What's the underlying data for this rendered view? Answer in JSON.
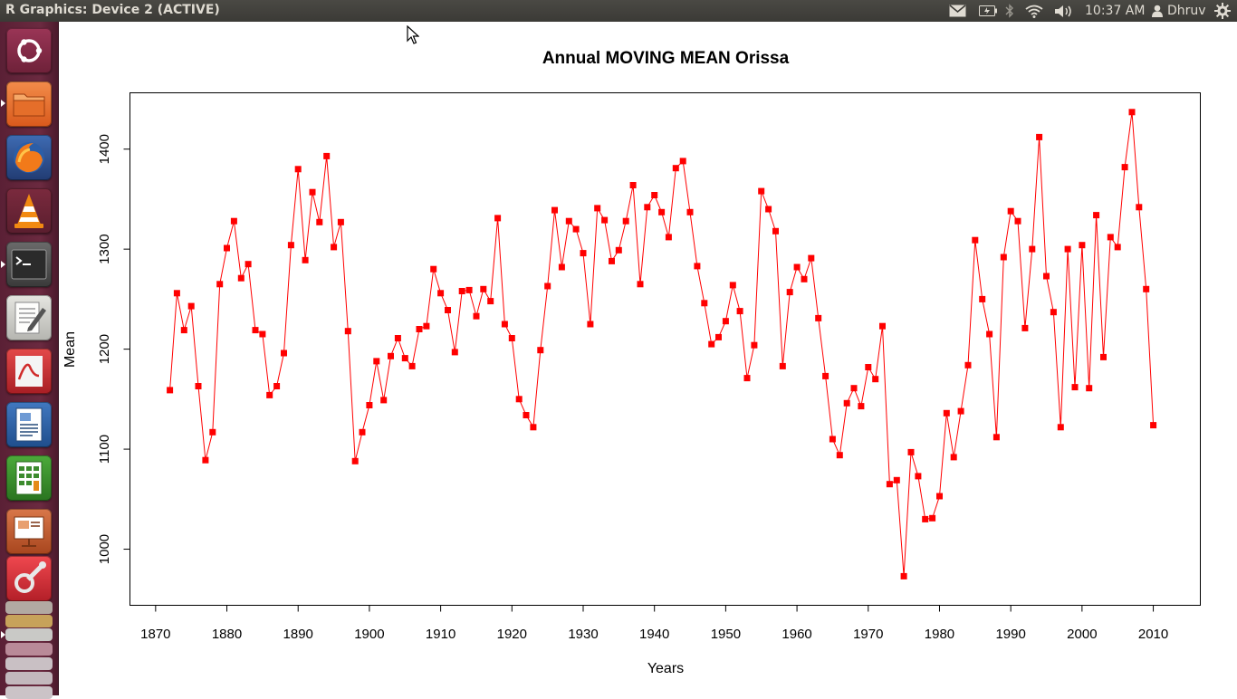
{
  "window": {
    "title": "R Graphics: Device 2 (ACTIVE)"
  },
  "panel": {
    "clock": "10:37 AM",
    "user": "Dhruv"
  },
  "launcher": {
    "items": [
      {
        "name": "dash-icon",
        "color": "#7a2540"
      },
      {
        "name": "files-icon",
        "color": "#e4732c"
      },
      {
        "name": "firefox-icon",
        "color": "#e55a1e"
      },
      {
        "name": "vlc-icon",
        "color": "#f08a1a"
      },
      {
        "name": "terminal-icon",
        "color": "#2c2c2c"
      },
      {
        "name": "text-editor-icon",
        "color": "#c9c9c4"
      },
      {
        "name": "document-viewer-icon",
        "color": "#c8323a"
      },
      {
        "name": "writer-icon",
        "color": "#2c5d9e"
      },
      {
        "name": "calc-icon",
        "color": "#3c8b2e"
      },
      {
        "name": "impress-icon",
        "color": "#b8502a"
      },
      {
        "name": "settings-icon",
        "color": "#d9363e"
      }
    ]
  },
  "chart_data": {
    "type": "line",
    "title": "Annual MOVING MEAN Orissa",
    "xlabel": "Years",
    "ylabel": "Mean",
    "x_ticks": [
      1870,
      1880,
      1890,
      1900,
      1910,
      1920,
      1930,
      1940,
      1950,
      1960,
      1970,
      1980,
      1990,
      2000,
      2010
    ],
    "y_ticks": [
      1000,
      1100,
      1200,
      1300,
      1400
    ],
    "xlim": [
      1866.4,
      2016.6
    ],
    "ylim": [
      943.9,
      1456.3
    ],
    "color": "#ff0000",
    "marker": "square",
    "grid": false,
    "legend": "none",
    "series": [
      {
        "x": [
          1872,
          1873,
          1874,
          1875,
          1876,
          1877,
          1878,
          1879,
          1880,
          1881,
          1882,
          1883,
          1884,
          1885,
          1886,
          1887,
          1888,
          1889,
          1890,
          1891,
          1892,
          1893,
          1894,
          1895,
          1896,
          1897,
          1898,
          1899,
          1900,
          1901,
          1902,
          1903,
          1904,
          1905,
          1906,
          1907,
          1908,
          1909,
          1910,
          1911,
          1912,
          1913,
          1914,
          1915,
          1916,
          1917,
          1918,
          1919,
          1920,
          1921,
          1922,
          1923,
          1924,
          1925,
          1926,
          1927,
          1928,
          1929,
          1930,
          1931,
          1932,
          1933,
          1934,
          1935,
          1936,
          1937,
          1938,
          1939,
          1940,
          1941,
          1942,
          1943,
          1944,
          1945,
          1946,
          1947,
          1948,
          1949,
          1950,
          1951,
          1952,
          1953,
          1954,
          1955,
          1956,
          1957,
          1958,
          1959,
          1960,
          1961,
          1962,
          1963,
          1964,
          1965,
          1966,
          1967,
          1968,
          1969,
          1970,
          1971,
          1972,
          1973,
          1974,
          1975,
          1976,
          1977,
          1978,
          1979,
          1980,
          1981,
          1982,
          1983,
          1984,
          1985,
          1986,
          1987,
          1988,
          1989,
          1990,
          1991,
          1992,
          1993,
          1994,
          1995,
          1996,
          1997,
          1998,
          1999,
          2000,
          2001,
          2002,
          2003,
          2004,
          2005,
          2006,
          2007,
          2008,
          2009,
          2010
        ],
        "y": [
          1159,
          1256,
          1219,
          1243,
          1163,
          1089,
          1117,
          1265,
          1301,
          1328,
          1271,
          1285,
          1219,
          1215,
          1154,
          1163,
          1196,
          1304,
          1380,
          1289,
          1357,
          1327,
          1393,
          1302,
          1327,
          1218,
          1088,
          1117,
          1144,
          1188,
          1149,
          1193,
          1211,
          1191,
          1183,
          1220,
          1223,
          1280,
          1256,
          1239,
          1197,
          1258,
          1259,
          1233,
          1260,
          1248,
          1331,
          1225,
          1211,
          1150,
          1134,
          1122,
          1199,
          1263,
          1339,
          1282,
          1328,
          1320,
          1296,
          1225,
          1341,
          1329,
          1288,
          1299,
          1328,
          1364,
          1265,
          1342,
          1354,
          1337,
          1312,
          1381,
          1388,
          1337,
          1283,
          1246,
          1205,
          1212,
          1228,
          1264,
          1238,
          1171,
          1204,
          1358,
          1340,
          1318,
          1183,
          1257,
          1282,
          1270,
          1291,
          1231,
          1173,
          1110,
          1094,
          1146,
          1161,
          1143,
          1182,
          1170,
          1223,
          1065,
          1069,
          973,
          1097,
          1073,
          1030,
          1031,
          1053,
          1136,
          1092,
          1138,
          1184,
          1309,
          1250,
          1215,
          1112,
          1292,
          1338,
          1328,
          1221,
          1300,
          1412,
          1273,
          1237,
          1122,
          1300,
          1162,
          1304,
          1161,
          1334,
          1192,
          1312,
          1302,
          1382,
          1437,
          1342,
          1260,
          1124
        ]
      }
    ]
  }
}
